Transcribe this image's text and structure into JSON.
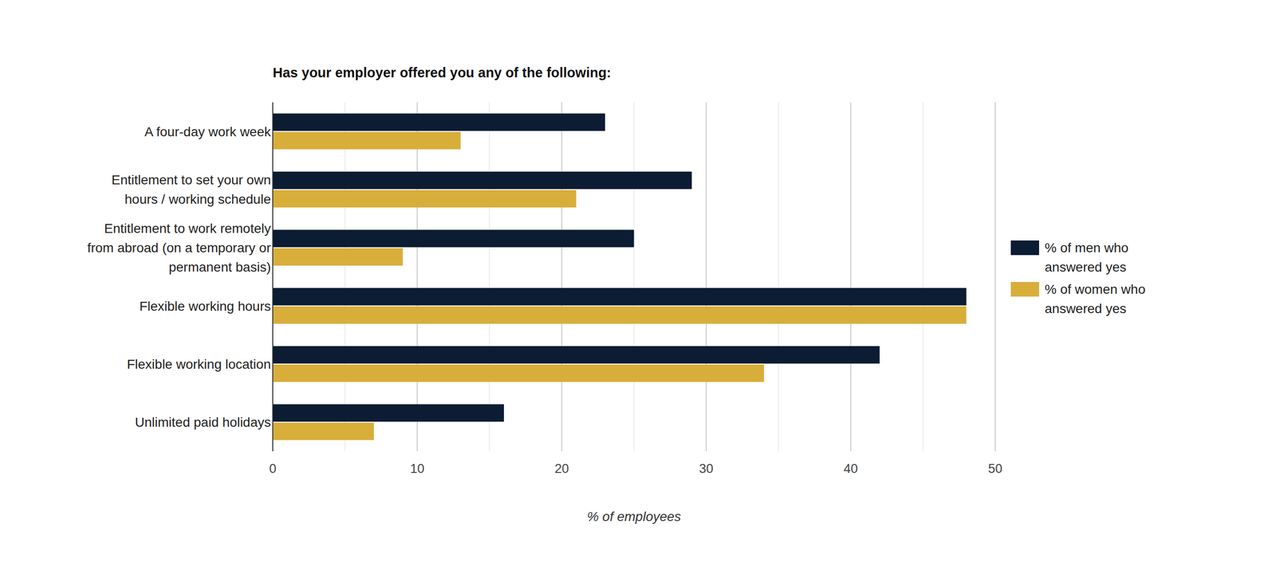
{
  "chart_data": {
    "type": "bar",
    "orientation": "horizontal",
    "title": "Has your employer offered you any of the following:",
    "x_label": "% of employees",
    "categories": [
      "A four-day work week",
      "Entitlement to set your own hours / working schedule",
      "Entitlement to work remotely from abroad (on a temporary or permanent basis)",
      "Flexible working hours",
      "Flexible working location",
      "Unlimited paid holidays"
    ],
    "series": [
      {
        "name": "% of men who answered yes",
        "color": "#0b1c33",
        "values": [
          23,
          29,
          25,
          48,
          42,
          16
        ]
      },
      {
        "name": "% of women who answered yes",
        "color": "#d8ae3b",
        "values": [
          13,
          21,
          9,
          48,
          34,
          7
        ]
      }
    ],
    "xlim": [
      0,
      50
    ],
    "xticks": [
      0,
      10,
      20,
      30,
      40,
      50
    ],
    "grid": true,
    "legend": "right"
  }
}
